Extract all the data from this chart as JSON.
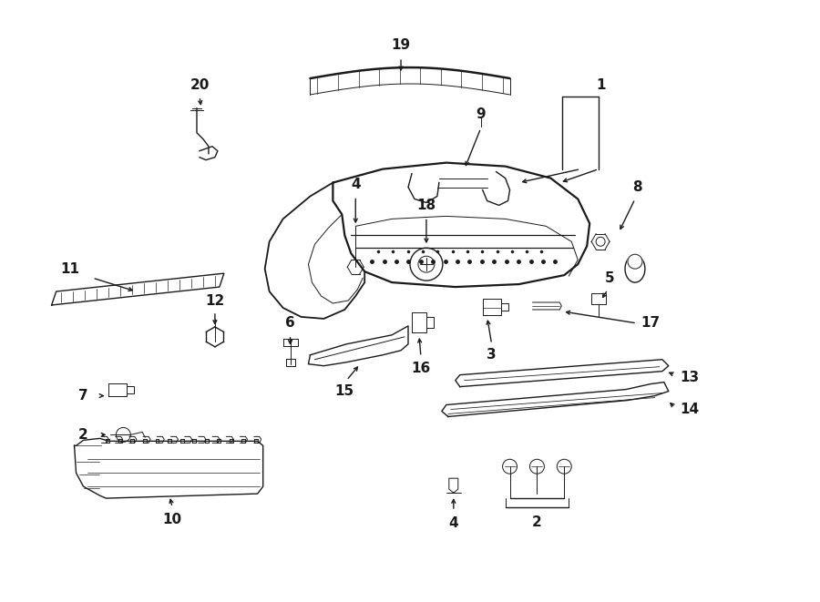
{
  "bg_color": "#ffffff",
  "line_color": "#1a1a1a",
  "fig_width": 9.0,
  "fig_height": 6.61,
  "dpi": 100,
  "lw_main": 1.3,
  "lw_thin": 0.7,
  "lw_med": 1.0,
  "font_size": 11,
  "font_weight": "bold"
}
